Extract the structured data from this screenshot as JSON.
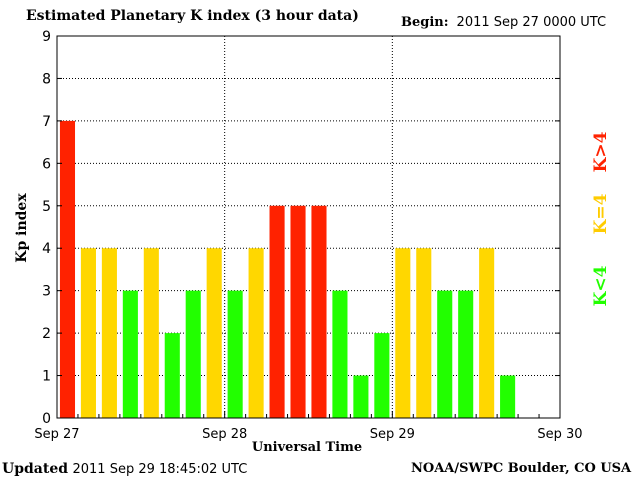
{
  "header": {
    "title": "Estimated Planetary K index (3 hour data)",
    "begin_label": "Begin:",
    "begin_value": "2011 Sep 27 0000 UTC"
  },
  "footer": {
    "updated_label": "Updated",
    "updated_value": "2011 Sep 29 18:45:02 UTC",
    "credit": "NOAA/SWPC Boulder, CO USA"
  },
  "legend": {
    "high": "K>4",
    "equal": "K=4",
    "low": "K<4"
  },
  "colors": {
    "high": "#ff2200",
    "equal": "#ffd700",
    "low": "#22ff00",
    "legend_equal_text": "#ffcc00"
  },
  "chart_data": {
    "type": "bar",
    "title": "Estimated Planetary K index (3 hour data)",
    "xlabel": "Universal Time",
    "ylabel": "Kp index",
    "ylim": [
      0,
      9
    ],
    "yticks": [
      0,
      1,
      2,
      3,
      4,
      5,
      6,
      7,
      8,
      9
    ],
    "xticks": [
      "Sep 27",
      "Sep 28",
      "Sep 29",
      "Sep 30"
    ],
    "days": 3,
    "intervals_per_day": 8,
    "grid": true,
    "values": [
      7,
      4,
      4,
      3,
      4,
      2,
      3,
      4,
      3,
      4,
      5,
      5,
      5,
      3,
      1,
      2,
      4,
      4,
      3,
      3,
      4,
      1
    ]
  }
}
